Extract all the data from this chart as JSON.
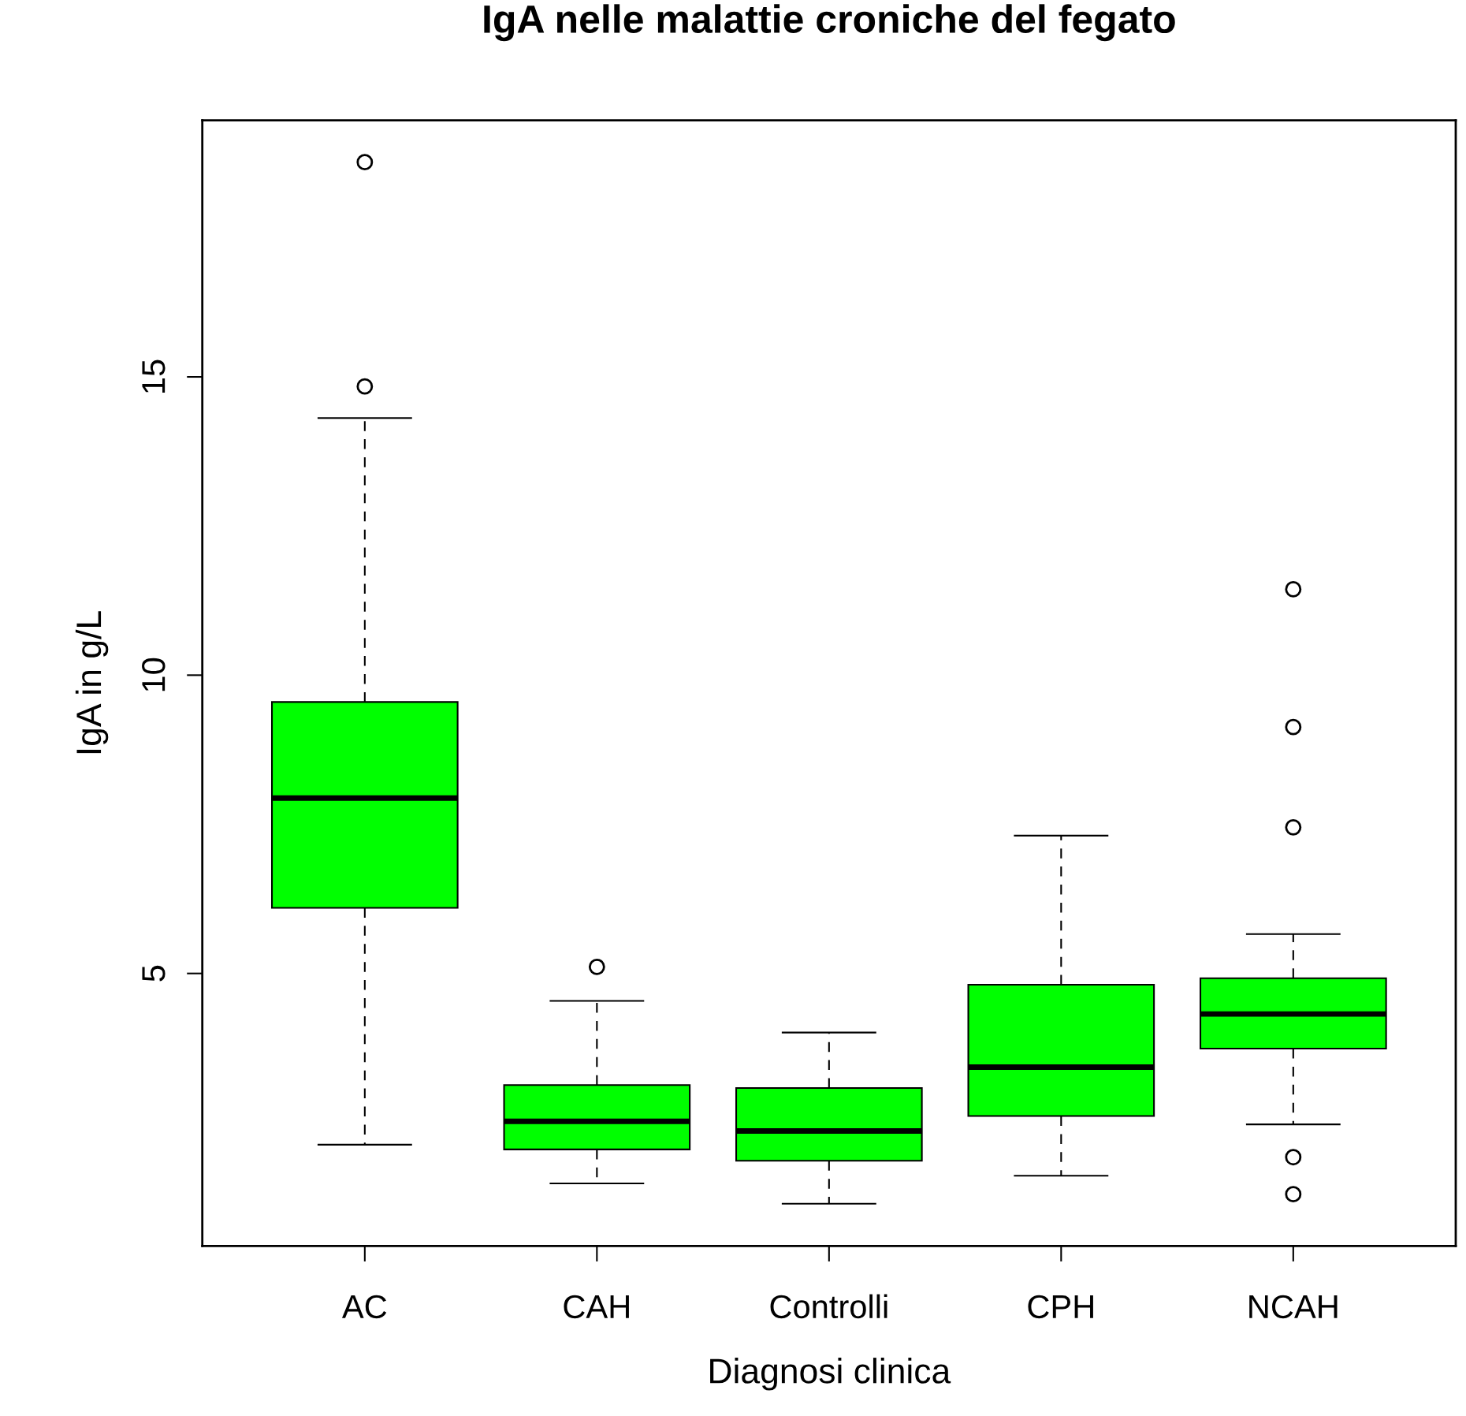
{
  "chart_data": {
    "type": "box",
    "title": "IgA nelle malattie croniche del fegato",
    "xlabel": "Diagnosi clinica",
    "ylabel": "IgA in g/L",
    "categories": [
      "AC",
      "CAH",
      "Controlli",
      "CPH",
      "NCAH"
    ],
    "series": [
      {
        "color": "#00ff00",
        "boxes": [
          {
            "low": 2.13,
            "q1": 6.1,
            "median": 7.94,
            "q3": 9.55,
            "high": 14.31,
            "outliers": [
              14.84,
              18.6
            ]
          },
          {
            "low": 1.48,
            "q1": 2.05,
            "median": 2.52,
            "q3": 3.13,
            "high": 4.54,
            "outliers": [
              5.11
            ]
          },
          {
            "low": 1.14,
            "q1": 1.86,
            "median": 2.36,
            "q3": 3.08,
            "high": 4.01
          },
          {
            "low": 1.61,
            "q1": 2.61,
            "median": 3.43,
            "q3": 4.81,
            "high": 7.31
          },
          {
            "low": 2.47,
            "q1": 3.74,
            "median": 4.32,
            "q3": 4.92,
            "high": 5.66,
            "outliers": [
              11.44,
              9.13,
              7.45,
              1.92,
              1.3
            ]
          }
        ]
      }
    ],
    "ylim": [
      0.43,
      19.3
    ],
    "yticks": [
      5,
      10,
      15
    ],
    "grid": false,
    "legend": false
  }
}
